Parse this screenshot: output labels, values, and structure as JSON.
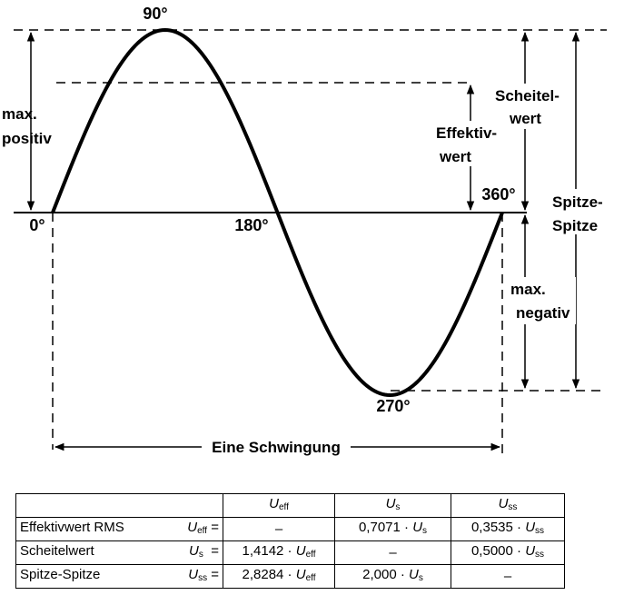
{
  "diagram": {
    "labels": {
      "deg_90": "90°",
      "deg_0": "0°",
      "deg_180": "180°",
      "deg_360": "360°",
      "deg_270": "270°",
      "max_positiv_1": "max.",
      "max_positiv_2": "positiv",
      "max_negativ_1": "max.",
      "max_negativ_2": "negativ",
      "scheitelwert_1": "Scheitel-",
      "scheitelwert_2": "wert",
      "effektivwert_1": "Effektiv-",
      "effektivwert_2": "wert",
      "spitze_spitze_1": "Spitze-",
      "spitze_spitze_2": "Spitze",
      "eine_schwingung": "Eine Schwingung"
    }
  },
  "table": {
    "header": {
      "c0": "",
      "c1_sym": "U",
      "c1_sub": "eff",
      "c2_sym": "U",
      "c2_sub": "s",
      "c3_sym": "U",
      "c3_sub": "ss"
    },
    "rows": [
      {
        "name": "Effektivwert RMS",
        "sym": "U",
        "sub": "eff",
        "eq": "=",
        "v1": "–",
        "v2_num": "0,7071 · ",
        "v2_sym": "U",
        "v2_sub": "s",
        "v3_num": "0,3535 · ",
        "v3_sym": "U",
        "v3_sub": "ss"
      },
      {
        "name": "Scheitelwert",
        "sym": "U",
        "sub": "s",
        "eq": "=",
        "v1_num": "1,4142 · ",
        "v1_sym": "U",
        "v1_sub": "eff",
        "v2": "–",
        "v3_num": "0,5000 · ",
        "v3_sym": "U",
        "v3_sub": "ss"
      },
      {
        "name": "Spitze-Spitze",
        "sym": "U",
        "sub": "ss",
        "eq": "=",
        "v1_num": "2,8284 · ",
        "v1_sym": "U",
        "v1_sub": "eff",
        "v2_num": "2,000 · ",
        "v2_sym": "U",
        "v2_sub": "s",
        "v3": "–"
      }
    ]
  }
}
